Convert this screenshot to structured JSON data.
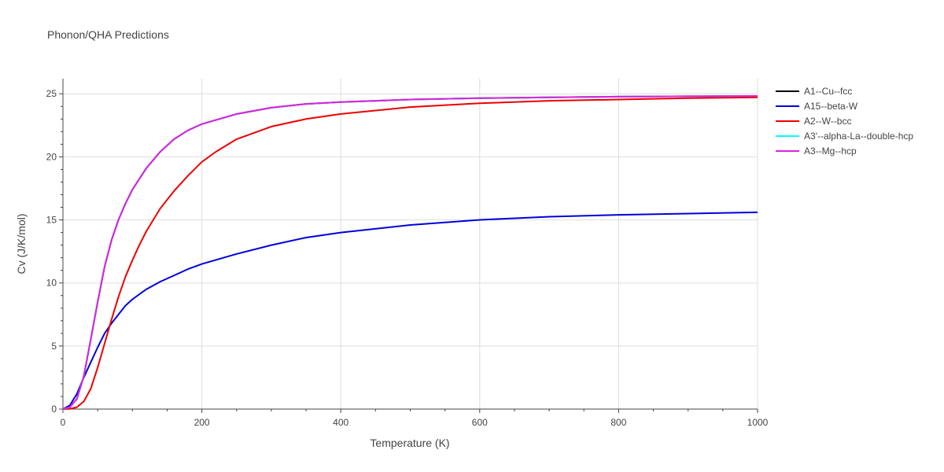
{
  "chart_data": {
    "type": "line",
    "title": "Phonon/QHA Predictions",
    "xlabel": "Temperature (K)",
    "ylabel": "Cv (J/K/mol)",
    "xlim": [
      0,
      1000
    ],
    "ylim": [
      0,
      26.2
    ],
    "xticks": [
      0,
      200,
      400,
      600,
      800,
      1000
    ],
    "yticks": [
      0,
      5,
      10,
      15,
      20,
      25
    ],
    "grid": true,
    "legend_position": "top-right",
    "series": [
      {
        "name": "A1--Cu--fcc",
        "color": "#000000",
        "x": [
          0,
          10,
          20,
          30,
          40,
          50,
          60,
          70,
          80,
          90,
          100,
          120,
          140,
          160,
          180,
          200,
          250,
          300,
          350,
          400,
          500,
          600,
          700,
          800,
          900,
          1000
        ],
        "y": [
          0,
          0.15,
          0.8,
          2.6,
          5.5,
          8.5,
          11.3,
          13.4,
          15.0,
          16.3,
          17.4,
          19.1,
          20.4,
          21.4,
          22.1,
          22.6,
          23.4,
          23.9,
          24.2,
          24.35,
          24.55,
          24.65,
          24.72,
          24.77,
          24.8,
          24.83
        ]
      },
      {
        "name": "A15--beta-W",
        "color": "#0000dd",
        "x": [
          0,
          10,
          20,
          30,
          40,
          50,
          60,
          70,
          80,
          90,
          100,
          120,
          140,
          160,
          180,
          200,
          250,
          300,
          350,
          400,
          500,
          600,
          700,
          800,
          900,
          1000
        ],
        "y": [
          0,
          0.3,
          1.2,
          2.5,
          3.7,
          4.9,
          6.0,
          6.8,
          7.5,
          8.2,
          8.7,
          9.5,
          10.1,
          10.6,
          11.1,
          11.5,
          12.3,
          13.0,
          13.6,
          14.0,
          14.6,
          15.0,
          15.25,
          15.4,
          15.5,
          15.6
        ]
      },
      {
        "name": "A2--W--bcc",
        "color": "#ee0000",
        "x": [
          0,
          10,
          20,
          30,
          40,
          50,
          60,
          70,
          80,
          90,
          100,
          110,
          120,
          140,
          160,
          180,
          200,
          220,
          250,
          300,
          350,
          400,
          500,
          600,
          700,
          800,
          900,
          1000
        ],
        "y": [
          0,
          0.02,
          0.15,
          0.6,
          1.6,
          3.3,
          5.2,
          7.1,
          8.9,
          10.5,
          11.8,
          13.0,
          14.1,
          15.9,
          17.3,
          18.5,
          19.6,
          20.4,
          21.4,
          22.4,
          23.0,
          23.4,
          23.95,
          24.25,
          24.45,
          24.55,
          24.65,
          24.72
        ]
      },
      {
        "name": "A3'--alpha-La--double-hcp",
        "color": "#00ffff",
        "x": [
          0,
          10,
          20,
          30,
          40,
          50,
          60,
          70,
          80,
          90,
          100,
          120,
          140,
          160,
          180,
          200,
          250,
          300,
          350,
          400,
          500,
          600,
          700,
          800,
          900,
          1000
        ],
        "y": [
          0,
          0.15,
          0.8,
          2.6,
          5.5,
          8.5,
          11.3,
          13.4,
          15.0,
          16.3,
          17.4,
          19.1,
          20.4,
          21.4,
          22.1,
          22.6,
          23.4,
          23.9,
          24.2,
          24.35,
          24.55,
          24.65,
          24.72,
          24.77,
          24.8,
          24.83
        ]
      },
      {
        "name": "A3--Mg--hcp",
        "color": "#dd22dd",
        "x": [
          0,
          10,
          20,
          30,
          40,
          50,
          60,
          70,
          80,
          90,
          100,
          120,
          140,
          160,
          180,
          200,
          250,
          300,
          350,
          400,
          500,
          600,
          700,
          800,
          900,
          1000
        ],
        "y": [
          0,
          0.15,
          0.8,
          2.6,
          5.5,
          8.5,
          11.3,
          13.4,
          15.0,
          16.3,
          17.4,
          19.1,
          20.4,
          21.4,
          22.1,
          22.6,
          23.4,
          23.9,
          24.2,
          24.35,
          24.55,
          24.65,
          24.72,
          24.77,
          24.8,
          24.83
        ]
      }
    ]
  }
}
